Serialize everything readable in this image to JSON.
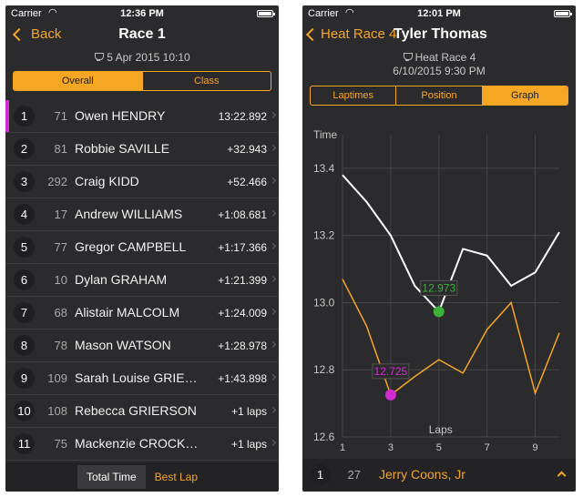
{
  "colors": {
    "accent": "#f5a623",
    "highlight": "#d42ad4",
    "best": "#3bb33b",
    "line_white": "#ffffff"
  },
  "left": {
    "status": {
      "carrier": "Carrier",
      "time": "12:36 PM"
    },
    "nav": {
      "back_label": "Back",
      "title": "Race 1",
      "subtitle": "5 Apr 2015 10:10"
    },
    "tabs": [
      {
        "label": "Overall",
        "active": true
      },
      {
        "label": "Class",
        "active": false
      }
    ],
    "results": [
      {
        "pos": "1",
        "num": "71",
        "name": "Owen HENDRY",
        "gap": "13:22.892"
      },
      {
        "pos": "2",
        "num": "81",
        "name": "Robbie SAVILLE",
        "gap": "+32.943"
      },
      {
        "pos": "3",
        "num": "292",
        "name": "Craig KIDD",
        "gap": "+52.466"
      },
      {
        "pos": "4",
        "num": "17",
        "name": "Andrew WILLIAMS",
        "gap": "+1:08.681"
      },
      {
        "pos": "5",
        "num": "77",
        "name": "Gregor CAMPBELL",
        "gap": "+1:17.366"
      },
      {
        "pos": "6",
        "num": "10",
        "name": "Dylan GRAHAM",
        "gap": "+1:21.399"
      },
      {
        "pos": "7",
        "num": "68",
        "name": "Alistair MALCOLM",
        "gap": "+1:24.009"
      },
      {
        "pos": "8",
        "num": "78",
        "name": "Mason WATSON",
        "gap": "+1:28.978"
      },
      {
        "pos": "9",
        "num": "109",
        "name": "Sarah Louise GRIE…",
        "gap": "+1:43.898"
      },
      {
        "pos": "10",
        "num": "108",
        "name": "Rebecca GRIERSON",
        "gap": "+1 laps"
      },
      {
        "pos": "11",
        "num": "75",
        "name": "Mackenzie CROCK…",
        "gap": "+1 laps"
      }
    ],
    "bottom_toggle": [
      {
        "label": "Total Time",
        "active": true
      },
      {
        "label": "Best Lap",
        "active": false
      }
    ]
  },
  "right": {
    "status": {
      "carrier": "Carrier",
      "time": "12:01 PM"
    },
    "nav": {
      "back_label": "Heat Race 4",
      "title": "Tyler Thomas",
      "subtitle": "Heat Race 4",
      "datetime": "6/10/2015 9:30 PM"
    },
    "tabs": [
      {
        "label": "Laptimes",
        "active": false
      },
      {
        "label": "Position",
        "active": false
      },
      {
        "label": "Graph",
        "active": true
      }
    ],
    "footer": {
      "pos": "1",
      "num": "27",
      "name": "Jerry Coons, Jr"
    }
  },
  "chart_data": {
    "type": "line",
    "ylabel": "Time",
    "xlabel": "Laps",
    "xlim": [
      1,
      10
    ],
    "ylim": [
      12.6,
      13.5
    ],
    "x_ticks": [
      1,
      3,
      5,
      7,
      9
    ],
    "y_ticks": [
      12.6,
      12.8,
      13.0,
      13.2,
      13.4
    ],
    "x_tick_labels": [
      "1",
      "3",
      "5",
      "7",
      "9"
    ],
    "y_tick_labels": [
      "12.6",
      "12.8",
      "13.0",
      "13.2",
      "13.4"
    ],
    "grid": true,
    "series": [
      {
        "color": "#ffffff",
        "x": [
          1,
          2,
          3,
          4,
          5,
          6,
          7,
          8,
          9,
          10
        ],
        "y": [
          13.38,
          13.3,
          13.2,
          13.05,
          12.973,
          13.16,
          13.14,
          13.05,
          13.09,
          13.21
        ],
        "best": {
          "x": 5,
          "y": 12.973,
          "label": "12.973",
          "color": "#3bb33b"
        }
      },
      {
        "color": "#f5a623",
        "x": [
          1,
          2,
          3,
          4,
          5,
          6,
          7,
          8,
          9,
          10
        ],
        "y": [
          13.07,
          12.93,
          12.725,
          12.78,
          12.83,
          12.79,
          12.92,
          13.0,
          12.73,
          12.91
        ],
        "best": {
          "x": 3,
          "y": 12.725,
          "label": "12.725",
          "color": "#d42ad4"
        }
      }
    ]
  }
}
